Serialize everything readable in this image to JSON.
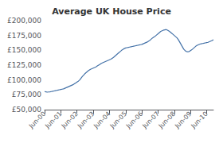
{
  "chart_data": {
    "type": "line",
    "title": "Average UK House Price",
    "categories": [
      "Jun-00",
      null,
      null,
      null,
      null,
      null,
      null,
      null,
      null,
      null,
      null,
      null,
      "Jun-01",
      null,
      null,
      null,
      null,
      null,
      null,
      null,
      null,
      null,
      null,
      null,
      "Jun-02",
      null,
      null,
      null,
      null,
      null,
      null,
      null,
      null,
      null,
      null,
      null,
      "Jun-03",
      null,
      null,
      null,
      null,
      null,
      null,
      null,
      null,
      null,
      null,
      null,
      "Jun-04",
      null,
      null,
      null,
      null,
      null,
      null,
      null,
      null,
      null,
      null,
      null,
      "Jun-05",
      null,
      null,
      null,
      null,
      null,
      null,
      null,
      null,
      null,
      null,
      null,
      "Jun-06",
      null,
      null,
      null,
      null,
      null,
      null,
      null,
      null,
      null,
      null,
      null,
      "Jun-07",
      null,
      null,
      null,
      null,
      null,
      null,
      null,
      null,
      null,
      null,
      null,
      "Jun-08",
      null,
      null,
      null,
      null,
      null,
      null,
      null,
      null,
      null,
      null,
      null,
      "Jun-09",
      null,
      null,
      null,
      null,
      null,
      null,
      null,
      null,
      null,
      null,
      null,
      "Jun-10",
      null,
      null,
      null,
      null,
      null
    ],
    "values": [
      80500,
      80000,
      79500,
      79800,
      80000,
      80500,
      81000,
      81500,
      82000,
      82500,
      83000,
      83500,
      84000,
      84500,
      85000,
      86000,
      87000,
      88000,
      89000,
      90000,
      91000,
      92000,
      93500,
      95000,
      96500,
      98000,
      100000,
      103000,
      106000,
      108500,
      111000,
      113000,
      115000,
      116500,
      118000,
      119000,
      120000,
      121000,
      122000,
      123500,
      125000,
      126500,
      128000,
      129000,
      130000,
      131000,
      132000,
      133000,
      134000,
      135000,
      136500,
      138000,
      140000,
      142000,
      144000,
      146000,
      148000,
      150000,
      151500,
      153000,
      154000,
      154500,
      155000,
      155500,
      156000,
      156500,
      157000,
      157500,
      158000,
      158500,
      159000,
      159500,
      160000,
      161000,
      162000,
      163000,
      164000,
      165500,
      167000,
      169000,
      171000,
      172500,
      174000,
      176000,
      178000,
      180000,
      182000,
      183000,
      184000,
      184500,
      185000,
      184000,
      182500,
      181000,
      179000,
      177000,
      175000,
      173000,
      171000,
      168000,
      164000,
      160000,
      156000,
      152000,
      149500,
      148000,
      147500,
      148000,
      149500,
      151000,
      153000,
      155000,
      157000,
      158500,
      159500,
      160500,
      161000,
      161500,
      162000,
      162500,
      163000,
      163500,
      164500,
      165500,
      166500,
      168000
    ],
    "color": "#4472a8",
    "ylim": [
      50000,
      200000
    ],
    "yticks": [
      {
        "value": 50000,
        "label": "£50,000"
      },
      {
        "value": 75000,
        "label": "£75,000"
      },
      {
        "value": 100000,
        "label": "£100,000"
      },
      {
        "value": 125000,
        "label": "£125,000"
      },
      {
        "value": 150000,
        "label": "£150,000"
      },
      {
        "value": 175000,
        "label": "£175,000"
      },
      {
        "value": 200000,
        "label": "£200,000"
      }
    ],
    "grid": false
  }
}
